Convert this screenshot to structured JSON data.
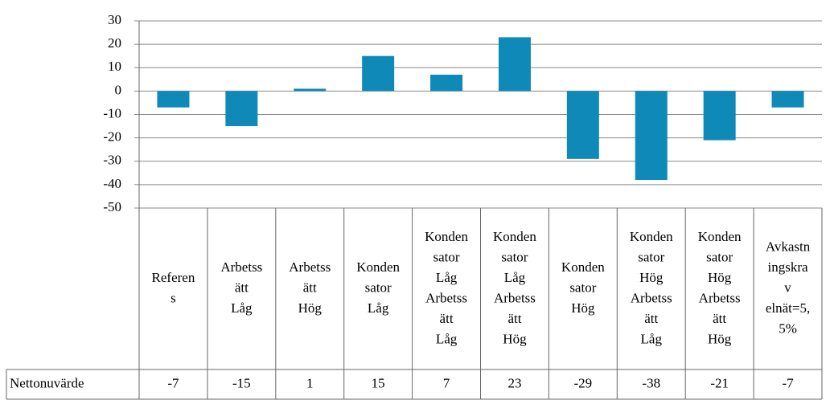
{
  "chart_data": {
    "type": "bar",
    "categories": [
      "Referens",
      "Arbetssätt Låg",
      "Arbetssätt Hög",
      "Kondensator Låg",
      "Kondensator Låg Arbetssätt Låg",
      "Kondensator Låg Arbetssätt Hög",
      "Kondensator Hög",
      "Kondensator Hög Arbetssätt Låg",
      "Kondensator Hög Arbetssätt Hög",
      "Avkastningskrav elnät=5,5%"
    ],
    "series": [
      {
        "name": "Nettonuvärde",
        "color": "#0f8ab8",
        "values": [
          -7,
          -15,
          1,
          15,
          7,
          23,
          -29,
          -38,
          -21,
          -7
        ]
      }
    ],
    "ylim": [
      -50,
      30
    ],
    "yticks": [
      -50,
      -40,
      -30,
      -20,
      -10,
      0,
      10,
      20,
      30
    ],
    "grid": true
  }
}
